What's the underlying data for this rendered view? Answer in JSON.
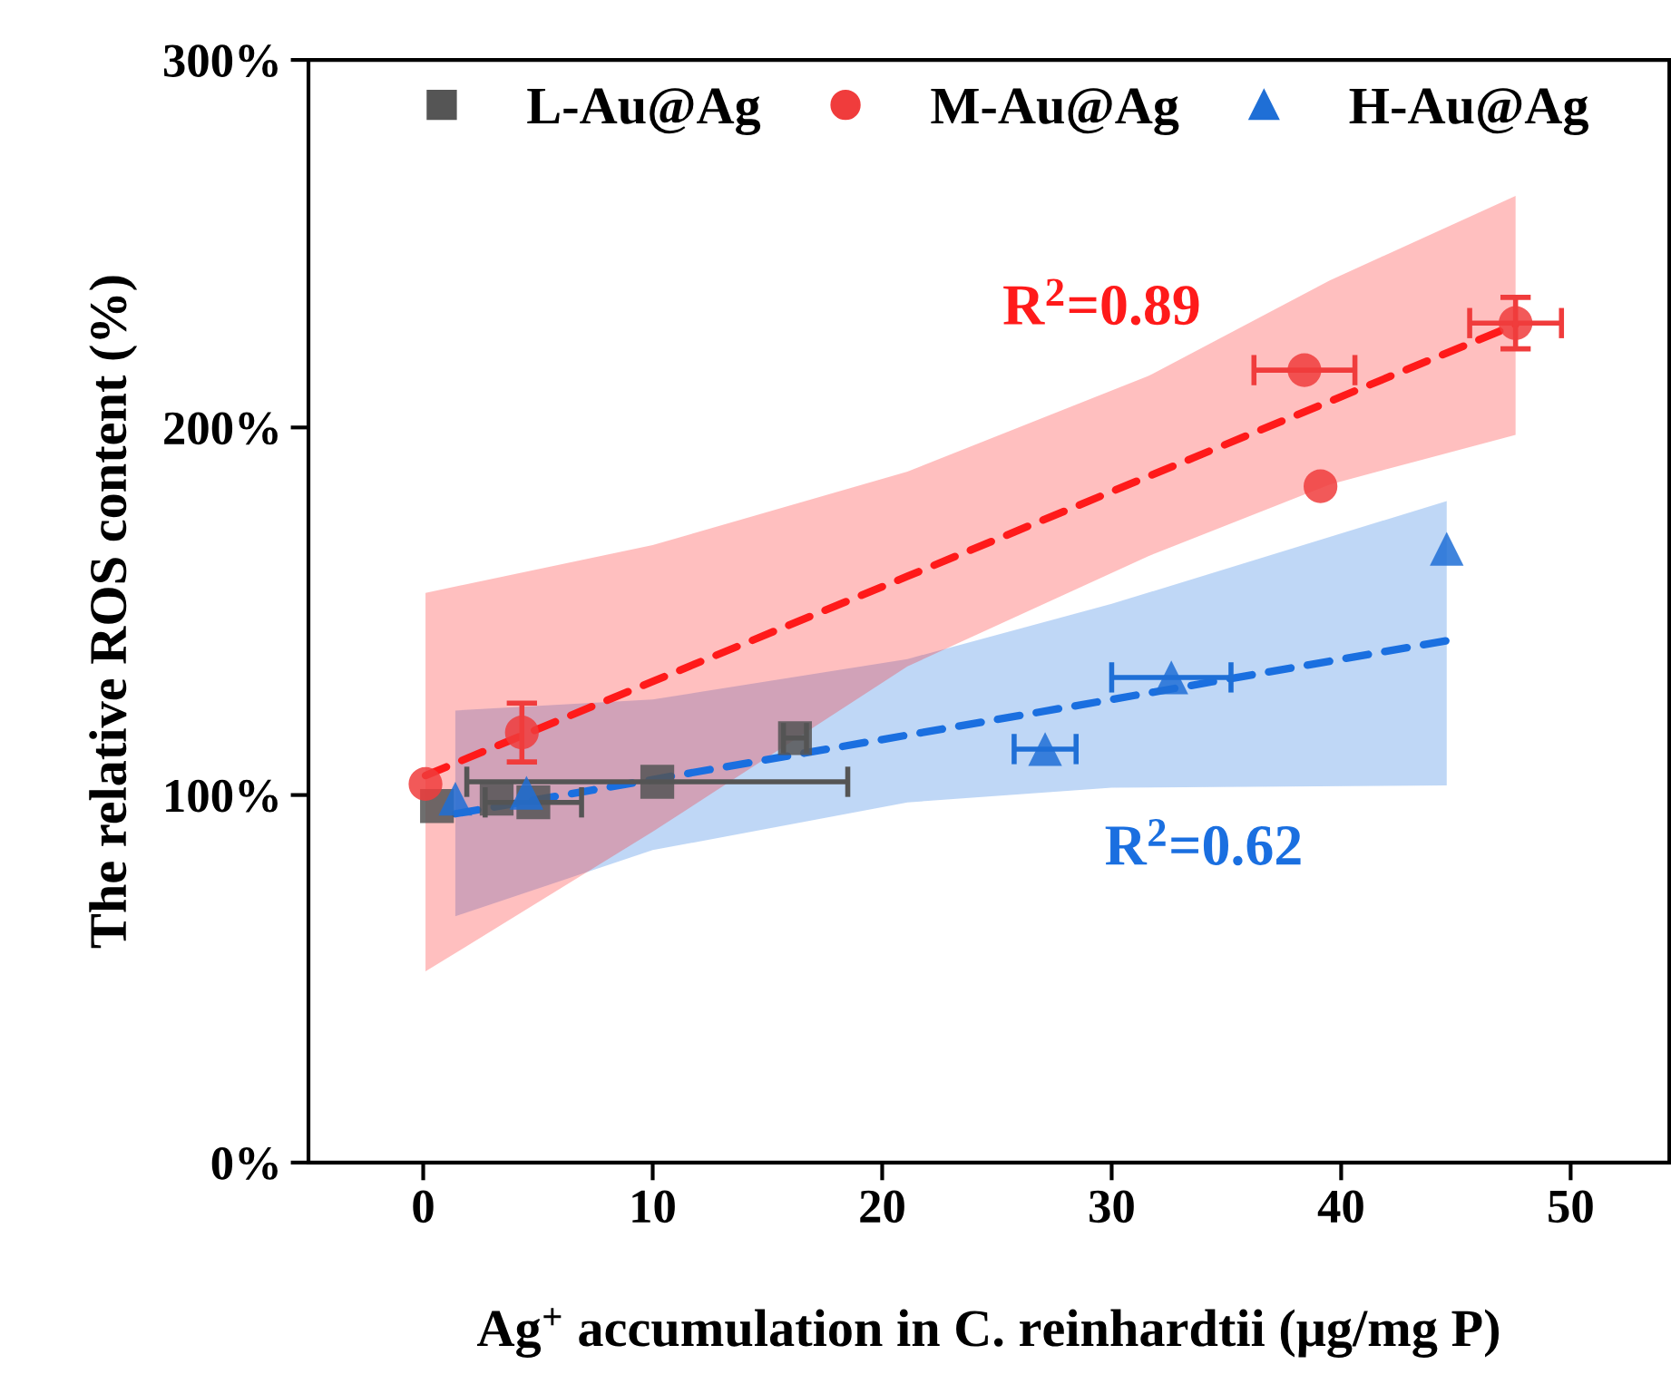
{
  "chart_data": {
    "type": "scatter",
    "xlabel": "Ag$^{+}$ accumulation in C. reinhardtii (μg/mg P)",
    "ylabel": "The relative ROS content (%)",
    "xlim": [
      -5,
      54.3
    ],
    "ylim": [
      0,
      300
    ],
    "xticks": [
      0,
      10,
      20,
      30,
      40,
      50
    ],
    "yticks": [
      {
        "value": 0,
        "label": "0%"
      },
      {
        "value": 100,
        "label": "100%"
      },
      {
        "value": 200,
        "label": "200%"
      },
      {
        "value": 300,
        "label": "300%"
      }
    ],
    "grid": false,
    "legend": "top",
    "series": [
      {
        "type": "line",
        "color": "#1a6fe0",
        "x": [
          1.4,
          10,
          21.1,
          30,
          44.6
        ],
        "values": [
          94.9,
          104.2,
          116.3,
          126,
          142
        ],
        "lower": [
          67,
          85,
          98,
          102,
          102.6
        ],
        "upper": [
          123,
          126,
          137,
          152,
          180
        ],
        "line_style": "dashed",
        "marker": "none"
      },
      {
        "type": "line",
        "color": "#ff1a1a",
        "x": [
          0.1,
          10,
          21.1,
          31.6,
          39.5,
          47.6
        ],
        "values": [
          105.3,
          130.9,
          159.5,
          186.7,
          207.1,
          228
        ],
        "lower": [
          52,
          90,
          135,
          165,
          184.5,
          198
        ],
        "upper": [
          155,
          168,
          188,
          214,
          240,
          263
        ],
        "line_style": "dashed",
        "marker": "none"
      },
      {
        "name": "L-Au@Ag",
        "color": "#555555",
        "marker": "square",
        "x": [
          0.6,
          3.2,
          4.8,
          10.2,
          16.2
        ],
        "values": [
          97,
          99,
          98,
          103.6,
          115.5
        ],
        "xerrors": [
          null,
          null,
          2.1,
          8.3,
          0.5
        ]
      },
      {
        "name": "M-Au@Ag",
        "color": "#f03c3c",
        "marker": "circle",
        "x": [
          0.1,
          4.3,
          38.4,
          39.1,
          47.6
        ],
        "values": [
          103,
          117,
          215.6,
          184,
          228.4
        ],
        "errors": [
          null,
          8,
          null,
          null,
          7
        ],
        "xerrors": [
          null,
          null,
          2.2,
          null,
          2
        ]
      },
      {
        "name": "H-Au@Ag",
        "color": "#1f6fd6",
        "marker": "triangle",
        "x": [
          1.4,
          4.5,
          27.1,
          32.6,
          44.6
        ],
        "values": [
          99,
          100.6,
          112.5,
          132,
          167
        ],
        "xerrors": [
          null,
          null,
          1.35,
          2.6,
          null
        ]
      }
    ],
    "annotations": [
      "R$^{2}$=0.89",
      "R$^{2}$=0.62"
    ]
  }
}
